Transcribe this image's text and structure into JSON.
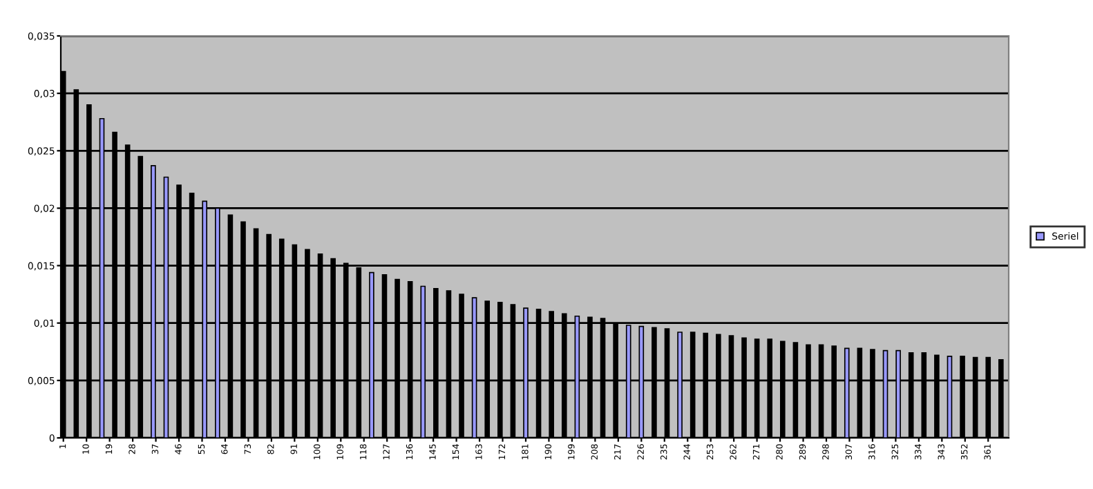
{
  "chart_data": {
    "type": "bar",
    "x": [
      1,
      6,
      11,
      16,
      21,
      26,
      31,
      36,
      41,
      46,
      51,
      56,
      61,
      66,
      71,
      76,
      81,
      86,
      91,
      96,
      101,
      106,
      111,
      116,
      121,
      126,
      131,
      136,
      141,
      146,
      151,
      156,
      161,
      166,
      171,
      176,
      181,
      186,
      191,
      196,
      201,
      206,
      211,
      216,
      221,
      226,
      231,
      236,
      241,
      246,
      251,
      256,
      261,
      266,
      271,
      276,
      281,
      286,
      291,
      296,
      301,
      306,
      311,
      316,
      321,
      326,
      331,
      336,
      341,
      346,
      351,
      356,
      361,
      366
    ],
    "series": [
      {
        "name": "Seriel",
        "color": "#9999ff",
        "colors": [
          "#000000",
          "#000000",
          "#000000",
          "#9999ff",
          "#000000",
          "#000000",
          "#000000",
          "#9999ff",
          "#9999ff",
          "#000000",
          "#000000",
          "#9999ff",
          "#9999ff",
          "#000000",
          "#000000",
          "#000000",
          "#000000",
          "#000000",
          "#000000",
          "#000000",
          "#000000",
          "#000000",
          "#000000",
          "#000000",
          "#9999ff",
          "#000000",
          "#000000",
          "#000000",
          "#9999ff",
          "#000000",
          "#000000",
          "#000000",
          "#9999ff",
          "#000000",
          "#000000",
          "#000000",
          "#9999ff",
          "#000000",
          "#000000",
          "#000000",
          "#9999ff",
          "#000000",
          "#000000",
          "#000000",
          "#9999ff",
          "#9999ff",
          "#000000",
          "#000000",
          "#9999ff",
          "#000000",
          "#000000",
          "#000000",
          "#000000",
          "#000000",
          "#000000",
          "#000000",
          "#000000",
          "#000000",
          "#000000",
          "#000000",
          "#000000",
          "#9999ff",
          "#000000",
          "#000000",
          "#9999ff",
          "#9999ff",
          "#000000",
          "#000000",
          "#000000",
          "#9999ff",
          "#000000",
          "#000000",
          "#000000",
          "#000000"
        ],
        "values": [
          0.0319,
          0.0303,
          0.029,
          0.0278,
          0.0266,
          0.0255,
          0.0245,
          0.0237,
          0.0227,
          0.022,
          0.0213,
          0.0206,
          0.02,
          0.0194,
          0.0188,
          0.0182,
          0.0177,
          0.0173,
          0.0168,
          0.0164,
          0.016,
          0.0156,
          0.0152,
          0.0148,
          0.0144,
          0.0142,
          0.0138,
          0.0136,
          0.0132,
          0.013,
          0.0128,
          0.0125,
          0.0122,
          0.0119,
          0.0118,
          0.0116,
          0.0113,
          0.0112,
          0.011,
          0.0108,
          0.0106,
          0.0105,
          0.0104,
          0.0099,
          0.0098,
          0.0097,
          0.0096,
          0.0095,
          0.0092,
          0.0092,
          0.0091,
          0.009,
          0.0089,
          0.0087,
          0.0086,
          0.0086,
          0.0084,
          0.0083,
          0.0081,
          0.0081,
          0.008,
          0.0078,
          0.0078,
          0.0077,
          0.0076,
          0.0076,
          0.0074,
          0.0074,
          0.0072,
          0.0071,
          0.0071,
          0.007,
          0.007,
          0.0068
        ]
      }
    ],
    "xlim": [
      0,
      369
    ],
    "xticks": [
      1,
      10,
      19,
      28,
      37,
      46,
      55,
      64,
      73,
      82,
      91,
      100,
      109,
      118,
      127,
      136,
      145,
      154,
      163,
      172,
      181,
      190,
      199,
      208,
      217,
      226,
      235,
      244,
      253,
      262,
      271,
      280,
      289,
      298,
      307,
      316,
      325,
      334,
      343,
      352,
      361
    ],
    "ylim": [
      0,
      0.035
    ],
    "yticks": [
      0,
      {
        "value": 0.005,
        "label": "0,005"
      },
      {
        "value": 0.01,
        "label": "0,01"
      },
      {
        "value": 0.015,
        "label": "0,015"
      },
      {
        "value": 0.02,
        "label": "0,02"
      },
      {
        "value": 0.025,
        "label": "0,025"
      },
      {
        "value": 0.03,
        "label": "0,03"
      },
      {
        "value": 0.035,
        "label": "0,035"
      }
    ],
    "grid": "y",
    "legend": "right"
  }
}
